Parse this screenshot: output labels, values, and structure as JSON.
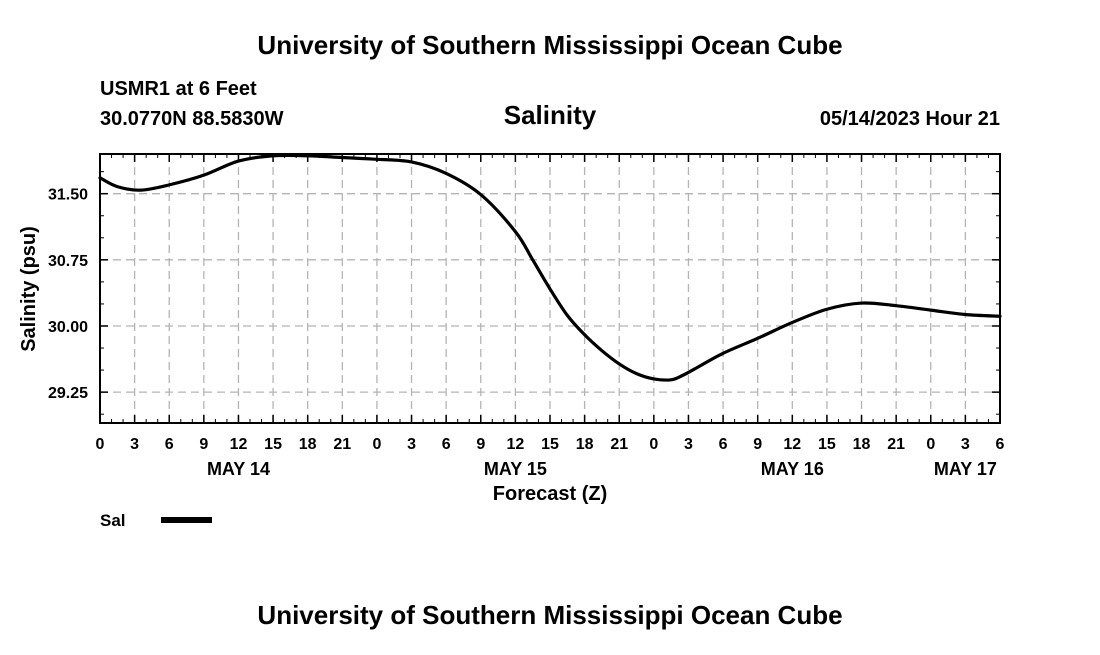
{
  "header": {
    "title": "University of Southern Mississippi Ocean Cube",
    "station": "USMR1 at 6 Feet",
    "coords": "30.0770N  88.5830W",
    "datetime": "05/14/2023 Hour 21"
  },
  "footer": {
    "title": "University of Southern Mississippi Ocean Cube"
  },
  "legend": {
    "label": "Sal"
  },
  "chart_data": {
    "type": "line",
    "title": "Salinity",
    "xlabel": "Forecast (Z)",
    "ylabel": "Salinity (psu)",
    "xlim": [
      0,
      78
    ],
    "ylim": [
      28.9,
      31.95
    ],
    "yticks": [
      29.25,
      30.0,
      30.75,
      31.5
    ],
    "ytick_labels": [
      "29.25",
      "30.00",
      "30.75",
      "31.50"
    ],
    "xtick_labels": [
      "0",
      "3",
      "6",
      "9",
      "12",
      "15",
      "18",
      "21",
      "0",
      "3",
      "6",
      "9",
      "12",
      "15",
      "18",
      "21",
      "0",
      "3",
      "6",
      "9",
      "12",
      "15",
      "18",
      "21",
      "0",
      "3",
      "6"
    ],
    "day_labels": [
      {
        "label": "MAY 14",
        "hour": 12
      },
      {
        "label": "MAY 15",
        "hour": 36
      },
      {
        "label": "MAY 16",
        "hour": 60
      },
      {
        "label": "MAY 17",
        "hour": 75
      }
    ],
    "grid": true,
    "series": [
      {
        "name": "Sal",
        "color": "#000000",
        "x": [
          0,
          1.5,
          3.5,
          6,
          9,
          12,
          15,
          18,
          21,
          24,
          27,
          30,
          33,
          36,
          37.5,
          39,
          40.5,
          42,
          43.5,
          45,
          46.5,
          48,
          49.5,
          50.5,
          51.5,
          54,
          57,
          60,
          63,
          66,
          69,
          72,
          75,
          78
        ],
        "y": [
          31.68,
          31.58,
          31.54,
          31.6,
          31.71,
          31.87,
          31.93,
          31.93,
          31.91,
          31.89,
          31.86,
          31.73,
          31.49,
          31.07,
          30.75,
          30.42,
          30.12,
          29.9,
          29.72,
          29.57,
          29.46,
          29.4,
          29.39,
          29.44,
          29.51,
          29.69,
          29.86,
          30.04,
          30.19,
          30.26,
          30.23,
          30.18,
          30.13,
          30.11
        ]
      }
    ]
  }
}
